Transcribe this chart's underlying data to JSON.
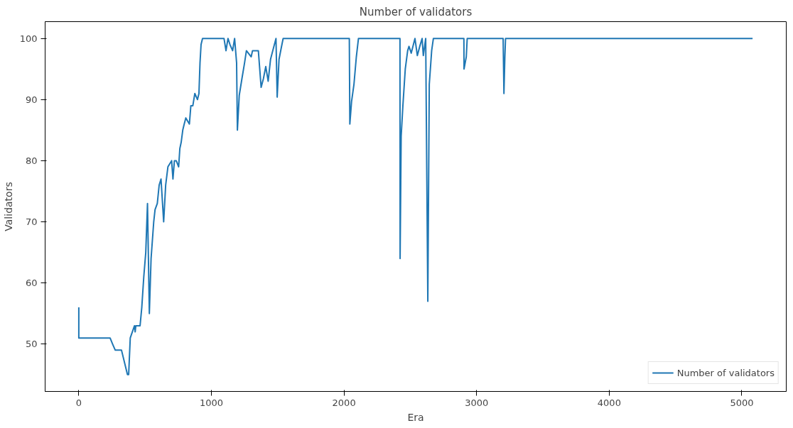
{
  "chart_data": {
    "type": "line",
    "title": "Number of validators",
    "xlabel": "Era",
    "ylabel": "Validators",
    "xlim": [
      -254,
      5335
    ],
    "ylim": [
      42.25,
      102.75
    ],
    "xticks": [
      0,
      1000,
      2000,
      3000,
      4000,
      5000
    ],
    "yticks": [
      50,
      60,
      70,
      80,
      90,
      100
    ],
    "grid": false,
    "legend": "bottom right",
    "x": [
      0,
      0,
      236,
      255,
      275,
      322,
      367,
      376,
      388,
      420,
      425,
      430,
      462,
      475,
      490,
      505,
      518,
      532,
      545,
      565,
      575,
      592,
      606,
      620,
      640,
      655,
      672,
      700,
      710,
      721,
      735,
      753,
      762,
      772,
      784,
      795,
      807,
      834,
      845,
      860,
      875,
      895,
      906,
      914,
      922,
      933,
      1095,
      1110,
      1125,
      1140,
      1160,
      1175,
      1190,
      1196,
      1210,
      1230,
      1250,
      1264,
      1300,
      1310,
      1354,
      1375,
      1392,
      1410,
      1428,
      1446,
      1470,
      1487,
      1496,
      1510,
      1528,
      1541,
      2040,
      2044,
      2057,
      2075,
      2093,
      2109,
      2422,
      2423,
      2431,
      2444,
      2462,
      2480,
      2490,
      2507,
      2535,
      2553,
      2571,
      2589,
      2598,
      2616,
      2632,
      2643,
      2661,
      2674,
      2904,
      2905,
      2922,
      2929,
      3200,
      3206,
      3213,
      3218,
      5081
    ],
    "series": [
      {
        "name": "Number of validators",
        "color": "#1f77b4",
        "values": [
          56,
          51,
          51,
          50,
          49,
          49,
          45,
          45,
          51,
          53,
          52,
          53,
          53,
          56,
          61,
          65,
          73,
          55,
          64,
          70,
          72,
          73,
          76,
          77,
          70,
          76,
          79,
          80,
          77,
          80,
          80,
          79,
          82,
          83,
          85,
          86,
          87,
          86,
          89,
          89,
          91,
          90,
          91,
          96,
          99,
          100,
          100,
          98,
          100,
          99,
          98,
          100,
          96,
          85,
          90.7,
          93.4,
          96,
          98,
          97,
          98,
          98,
          92,
          93.4,
          95.4,
          93,
          96.6,
          98.6,
          100,
          90.4,
          96.6,
          98.6,
          100,
          100,
          86,
          89.7,
          92.5,
          97,
          100,
          100,
          64,
          84,
          89,
          95,
          98,
          98.7,
          97.6,
          100,
          97.2,
          98.7,
          100,
          97.2,
          100,
          57,
          92.5,
          98,
          100,
          100,
          95,
          97,
          100,
          100,
          91,
          97,
          100,
          100
        ]
      }
    ]
  }
}
